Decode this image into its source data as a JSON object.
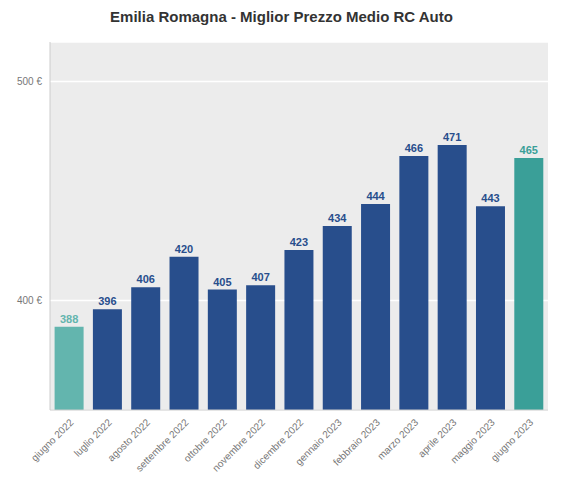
{
  "chart_data": {
    "type": "bar",
    "title": "Emilia Romagna - Miglior Prezzo Medio RC Auto",
    "categories": [
      "giugno 2022",
      "luglio 2022",
      "agosto 2022",
      "settembre 2022",
      "ottobre 2022",
      "novembre 2022",
      "dicembre 2022",
      "gennaio 2023",
      "febbraio 2023",
      "marzo 2023",
      "aprile 2023",
      "maggio 2023",
      "giugno 2023"
    ],
    "values": [
      388,
      396,
      406,
      420,
      405,
      407,
      423,
      434,
      444,
      466,
      471,
      443,
      465
    ],
    "colors": [
      "#63b5ae",
      "#284e8c",
      "#284e8c",
      "#284e8c",
      "#284e8c",
      "#284e8c",
      "#284e8c",
      "#284e8c",
      "#284e8c",
      "#284e8c",
      "#284e8c",
      "#284e8c",
      "#3a9f98"
    ],
    "ylim": [
      350,
      518
    ],
    "yticks": [
      {
        "value": 400,
        "label": "400 €"
      },
      {
        "value": 500,
        "label": "500 €"
      }
    ],
    "grid": true,
    "data_labels": true
  }
}
